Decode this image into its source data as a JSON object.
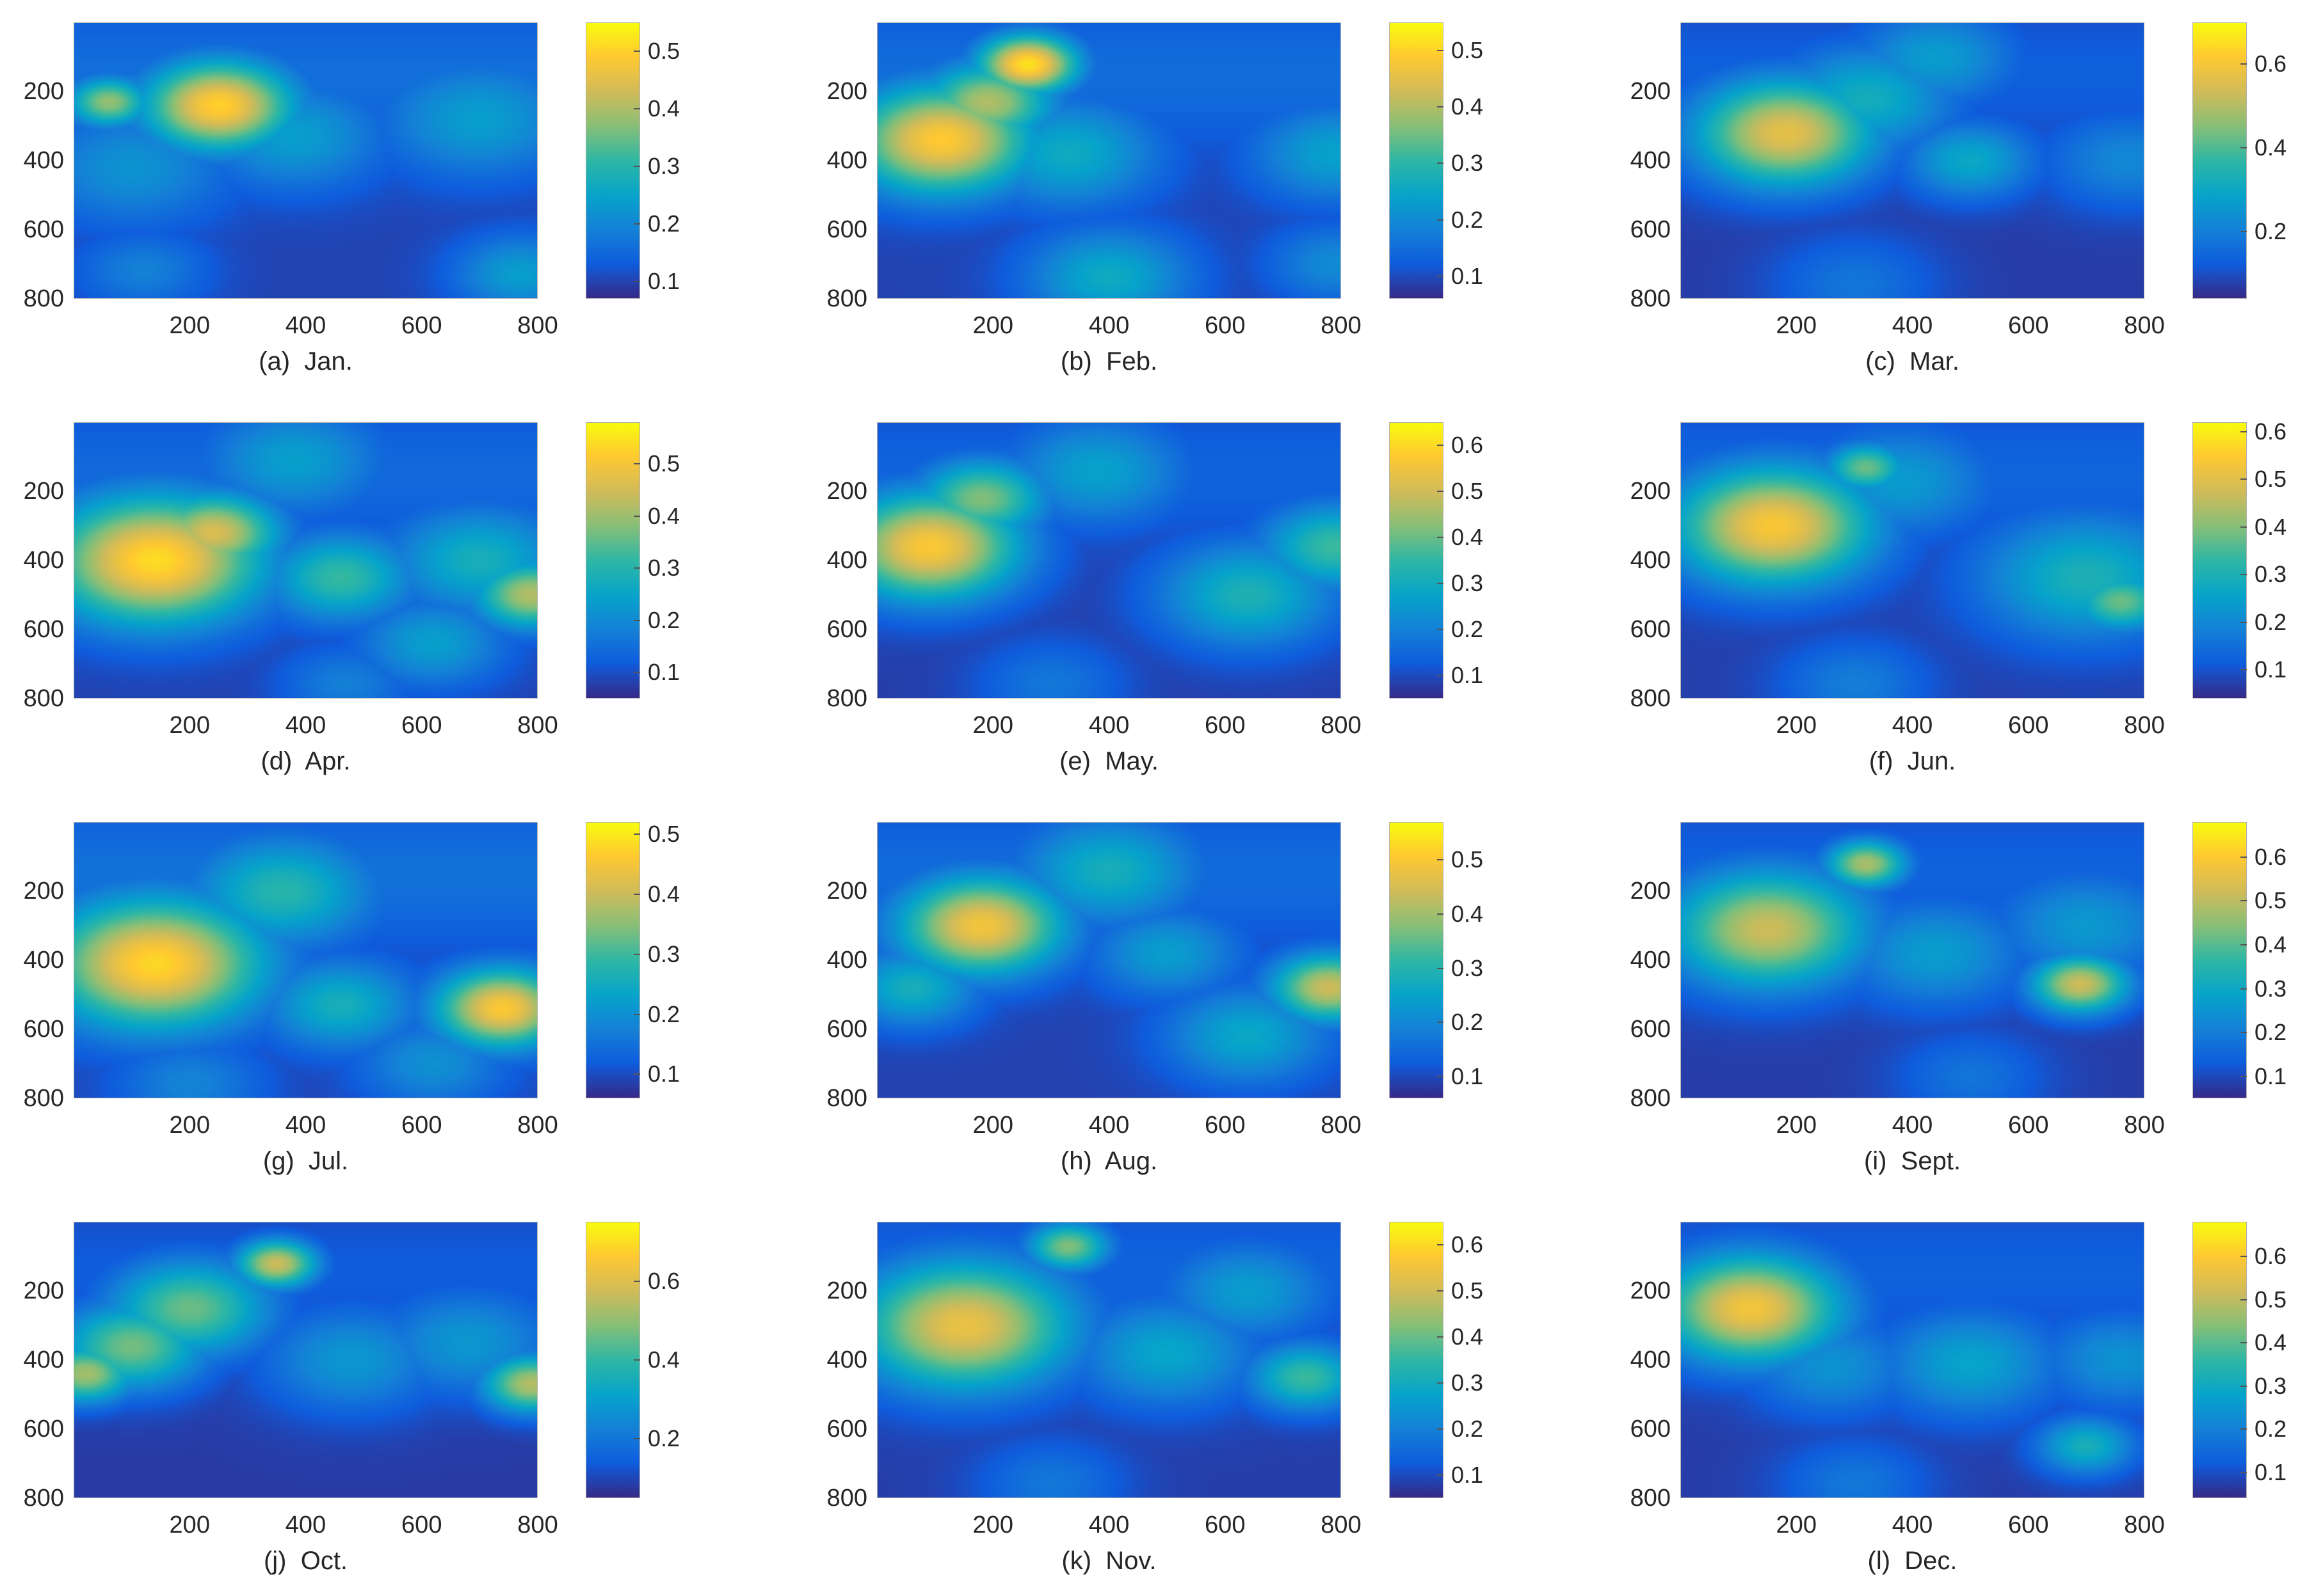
{
  "colors": {
    "colormap_parula": [
      "#352a87",
      "#0f5cdd",
      "#1481d6",
      "#06a4ca",
      "#2eb7a4",
      "#87bf77",
      "#d1bb59",
      "#fec832",
      "#f9fb0e"
    ]
  },
  "chart_data": [
    {
      "type": "heatmap",
      "caption": "(a)  Jan.",
      "xlim": [
        0,
        800
      ],
      "ylim": [
        800,
        0
      ],
      "x_ticks": [
        "200",
        "400",
        "600",
        "800"
      ],
      "y_ticks": [
        "200",
        "400",
        "600",
        "800"
      ],
      "colorbar": {
        "min": 0.07,
        "max": 0.55,
        "ticks": [
          "0.1",
          "0.2",
          "0.3",
          "0.4",
          "0.5"
        ]
      },
      "hotspots": [
        {
          "x": 250,
          "y": 240,
          "value": 0.48,
          "spread": 90
        },
        {
          "x": 60,
          "y": 230,
          "value": 0.36,
          "spread": 50
        },
        {
          "x": 380,
          "y": 330,
          "value": 0.22,
          "spread": 110
        },
        {
          "x": 700,
          "y": 280,
          "value": 0.22,
          "spread": 120
        },
        {
          "x": 100,
          "y": 420,
          "value": 0.2,
          "spread": 120
        },
        {
          "x": 770,
          "y": 730,
          "value": 0.22,
          "spread": 80
        },
        {
          "x": 120,
          "y": 720,
          "value": 0.17,
          "spread": 80
        }
      ]
    },
    {
      "type": "heatmap",
      "caption": "(b)  Feb.",
      "xlim": [
        0,
        800
      ],
      "ylim": [
        800,
        0
      ],
      "x_ticks": [
        "200",
        "400",
        "600",
        "800"
      ],
      "y_ticks": [
        "200",
        "400",
        "600",
        "800"
      ],
      "colorbar": {
        "min": 0.06,
        "max": 0.55,
        "ticks": [
          "0.1",
          "0.2",
          "0.3",
          "0.4",
          "0.5"
        ]
      },
      "hotspots": [
        {
          "x": 110,
          "y": 340,
          "value": 0.47,
          "spread": 110
        },
        {
          "x": 260,
          "y": 120,
          "value": 0.5,
          "spread": 60
        },
        {
          "x": 190,
          "y": 230,
          "value": 0.38,
          "spread": 80
        },
        {
          "x": 330,
          "y": 380,
          "value": 0.24,
          "spread": 110
        },
        {
          "x": 400,
          "y": 740,
          "value": 0.24,
          "spread": 100
        },
        {
          "x": 790,
          "y": 380,
          "value": 0.22,
          "spread": 100
        },
        {
          "x": 790,
          "y": 700,
          "value": 0.18,
          "spread": 80
        }
      ]
    },
    {
      "type": "heatmap",
      "caption": "(c)  Mar.",
      "xlim": [
        0,
        800
      ],
      "ylim": [
        800,
        0
      ],
      "x_ticks": [
        "200",
        "400",
        "600",
        "800"
      ],
      "y_ticks": [
        "200",
        "400",
        "600",
        "800"
      ],
      "colorbar": {
        "min": 0.04,
        "max": 0.7,
        "ticks": [
          "0.2",
          "0.4",
          "0.6"
        ]
      },
      "hotspots": [
        {
          "x": 180,
          "y": 320,
          "value": 0.55,
          "spread": 110
        },
        {
          "x": 320,
          "y": 220,
          "value": 0.3,
          "spread": 110
        },
        {
          "x": 500,
          "y": 400,
          "value": 0.28,
          "spread": 80
        },
        {
          "x": 440,
          "y": 100,
          "value": 0.25,
          "spread": 100
        },
        {
          "x": 770,
          "y": 400,
          "value": 0.2,
          "spread": 100
        },
        {
          "x": 300,
          "y": 760,
          "value": 0.16,
          "spread": 100
        }
      ]
    },
    {
      "type": "heatmap",
      "caption": "(d)  Apr.",
      "xlim": [
        0,
        800
      ],
      "ylim": [
        800,
        0
      ],
      "x_ticks": [
        "200",
        "400",
        "600",
        "800"
      ],
      "y_ticks": [
        "200",
        "400",
        "600",
        "800"
      ],
      "colorbar": {
        "min": 0.05,
        "max": 0.58,
        "ticks": [
          "0.1",
          "0.2",
          "0.3",
          "0.4",
          "0.5"
        ]
      },
      "hotspots": [
        {
          "x": 140,
          "y": 400,
          "value": 0.52,
          "spread": 130
        },
        {
          "x": 240,
          "y": 320,
          "value": 0.44,
          "spread": 80
        },
        {
          "x": 460,
          "y": 450,
          "value": 0.3,
          "spread": 90
        },
        {
          "x": 790,
          "y": 500,
          "value": 0.4,
          "spread": 70
        },
        {
          "x": 700,
          "y": 400,
          "value": 0.26,
          "spread": 110
        },
        {
          "x": 620,
          "y": 640,
          "value": 0.22,
          "spread": 90
        },
        {
          "x": 380,
          "y": 110,
          "value": 0.22,
          "spread": 110
        },
        {
          "x": 470,
          "y": 760,
          "value": 0.16,
          "spread": 80
        }
      ]
    },
    {
      "type": "heatmap",
      "caption": "(e)  May.",
      "xlim": [
        0,
        800
      ],
      "ylim": [
        800,
        0
      ],
      "x_ticks": [
        "200",
        "400",
        "600",
        "800"
      ],
      "y_ticks": [
        "200",
        "400",
        "600",
        "800"
      ],
      "colorbar": {
        "min": 0.05,
        "max": 0.65,
        "ticks": [
          "0.1",
          "0.2",
          "0.3",
          "0.4",
          "0.5",
          "0.6"
        ]
      },
      "hotspots": [
        {
          "x": 90,
          "y": 360,
          "value": 0.55,
          "spread": 110
        },
        {
          "x": 180,
          "y": 220,
          "value": 0.4,
          "spread": 80
        },
        {
          "x": 380,
          "y": 140,
          "value": 0.25,
          "spread": 110
        },
        {
          "x": 640,
          "y": 500,
          "value": 0.3,
          "spread": 110
        },
        {
          "x": 790,
          "y": 360,
          "value": 0.34,
          "spread": 90
        },
        {
          "x": 300,
          "y": 760,
          "value": 0.16,
          "spread": 90
        }
      ]
    },
    {
      "type": "heatmap",
      "caption": "(f)  Jun.",
      "xlim": [
        0,
        800
      ],
      "ylim": [
        800,
        0
      ],
      "x_ticks": [
        "200",
        "400",
        "600",
        "800"
      ],
      "y_ticks": [
        "200",
        "400",
        "600",
        "800"
      ],
      "colorbar": {
        "min": 0.04,
        "max": 0.62,
        "ticks": [
          "0.1",
          "0.2",
          "0.3",
          "0.4",
          "0.5",
          "0.6"
        ]
      },
      "hotspots": [
        {
          "x": 160,
          "y": 300,
          "value": 0.52,
          "spread": 120
        },
        {
          "x": 320,
          "y": 130,
          "value": 0.36,
          "spread": 50
        },
        {
          "x": 700,
          "y": 450,
          "value": 0.28,
          "spread": 130
        },
        {
          "x": 760,
          "y": 520,
          "value": 0.36,
          "spread": 60
        },
        {
          "x": 380,
          "y": 170,
          "value": 0.22,
          "spread": 110
        },
        {
          "x": 300,
          "y": 760,
          "value": 0.16,
          "spread": 90
        }
      ]
    },
    {
      "type": "heatmap",
      "caption": "(g)  Jul.",
      "xlim": [
        0,
        800
      ],
      "ylim": [
        800,
        0
      ],
      "x_ticks": [
        "200",
        "400",
        "600",
        "800"
      ],
      "y_ticks": [
        "200",
        "400",
        "600",
        "800"
      ],
      "colorbar": {
        "min": 0.06,
        "max": 0.52,
        "ticks": [
          "0.1",
          "0.2",
          "0.3",
          "0.4",
          "0.5"
        ]
      },
      "hotspots": [
        {
          "x": 140,
          "y": 410,
          "value": 0.46,
          "spread": 130
        },
        {
          "x": 740,
          "y": 540,
          "value": 0.44,
          "spread": 80
        },
        {
          "x": 360,
          "y": 200,
          "value": 0.26,
          "spread": 110
        },
        {
          "x": 460,
          "y": 530,
          "value": 0.24,
          "spread": 90
        },
        {
          "x": 620,
          "y": 700,
          "value": 0.18,
          "spread": 90
        },
        {
          "x": 200,
          "y": 760,
          "value": 0.16,
          "spread": 90
        }
      ]
    },
    {
      "type": "heatmap",
      "caption": "(h)  Aug.",
      "xlim": [
        0,
        800
      ],
      "ylim": [
        800,
        0
      ],
      "x_ticks": [
        "200",
        "400",
        "600",
        "800"
      ],
      "y_ticks": [
        "200",
        "400",
        "600",
        "800"
      ],
      "colorbar": {
        "min": 0.06,
        "max": 0.57,
        "ticks": [
          "0.1",
          "0.2",
          "0.3",
          "0.4",
          "0.5"
        ]
      },
      "hotspots": [
        {
          "x": 180,
          "y": 300,
          "value": 0.47,
          "spread": 100
        },
        {
          "x": 780,
          "y": 480,
          "value": 0.42,
          "spread": 70
        },
        {
          "x": 400,
          "y": 140,
          "value": 0.26,
          "spread": 110
        },
        {
          "x": 640,
          "y": 620,
          "value": 0.24,
          "spread": 100
        },
        {
          "x": 500,
          "y": 380,
          "value": 0.22,
          "spread": 90
        },
        {
          "x": 60,
          "y": 480,
          "value": 0.26,
          "spread": 80
        }
      ]
    },
    {
      "type": "heatmap",
      "caption": "(i)  Sept.",
      "xlim": [
        0,
        800
      ],
      "ylim": [
        800,
        0
      ],
      "x_ticks": [
        "200",
        "400",
        "600",
        "800"
      ],
      "y_ticks": [
        "200",
        "400",
        "600",
        "800"
      ],
      "colorbar": {
        "min": 0.05,
        "max": 0.68,
        "ticks": [
          "0.1",
          "0.2",
          "0.3",
          "0.4",
          "0.5",
          "0.6"
        ]
      },
      "hotspots": [
        {
          "x": 150,
          "y": 310,
          "value": 0.5,
          "spread": 120
        },
        {
          "x": 320,
          "y": 120,
          "value": 0.46,
          "spread": 50
        },
        {
          "x": 690,
          "y": 470,
          "value": 0.5,
          "spread": 60
        },
        {
          "x": 440,
          "y": 380,
          "value": 0.25,
          "spread": 110
        },
        {
          "x": 700,
          "y": 300,
          "value": 0.24,
          "spread": 110
        },
        {
          "x": 500,
          "y": 740,
          "value": 0.16,
          "spread": 90
        }
      ]
    },
    {
      "type": "heatmap",
      "caption": "(j)  Oct.",
      "xlim": [
        0,
        800
      ],
      "ylim": [
        800,
        0
      ],
      "x_ticks": [
        "200",
        "400",
        "600",
        "800"
      ],
      "y_ticks": [
        "200",
        "400",
        "600",
        "800"
      ],
      "colorbar": {
        "min": 0.05,
        "max": 0.75,
        "ticks": [
          "0.2",
          "0.4",
          "0.6"
        ]
      },
      "hotspots": [
        {
          "x": 350,
          "y": 120,
          "value": 0.55,
          "spread": 50
        },
        {
          "x": 100,
          "y": 360,
          "value": 0.45,
          "spread": 90
        },
        {
          "x": 200,
          "y": 250,
          "value": 0.44,
          "spread": 100
        },
        {
          "x": 20,
          "y": 440,
          "value": 0.5,
          "spread": 60
        },
        {
          "x": 790,
          "y": 470,
          "value": 0.52,
          "spread": 60
        },
        {
          "x": 480,
          "y": 400,
          "value": 0.26,
          "spread": 110
        },
        {
          "x": 680,
          "y": 350,
          "value": 0.26,
          "spread": 110
        }
      ]
    },
    {
      "type": "heatmap",
      "caption": "(k)  Nov.",
      "xlim": [
        0,
        800
      ],
      "ylim": [
        800,
        0
      ],
      "x_ticks": [
        "200",
        "400",
        "600",
        "800"
      ],
      "y_ticks": [
        "200",
        "400",
        "600",
        "800"
      ],
      "colorbar": {
        "min": 0.05,
        "max": 0.65,
        "ticks": [
          "0.1",
          "0.2",
          "0.3",
          "0.4",
          "0.5",
          "0.6"
        ]
      },
      "hotspots": [
        {
          "x": 150,
          "y": 300,
          "value": 0.52,
          "spread": 130
        },
        {
          "x": 330,
          "y": 70,
          "value": 0.4,
          "spread": 50
        },
        {
          "x": 500,
          "y": 380,
          "value": 0.26,
          "spread": 110
        },
        {
          "x": 740,
          "y": 450,
          "value": 0.34,
          "spread": 70
        },
        {
          "x": 640,
          "y": 200,
          "value": 0.24,
          "spread": 100
        },
        {
          "x": 300,
          "y": 760,
          "value": 0.16,
          "spread": 90
        }
      ]
    },
    {
      "type": "heatmap",
      "caption": "(l)  Dec.",
      "xlim": [
        0,
        800
      ],
      "ylim": [
        800,
        0
      ],
      "x_ticks": [
        "200",
        "400",
        "600",
        "800"
      ],
      "y_ticks": [
        "200",
        "400",
        "600",
        "800"
      ],
      "colorbar": {
        "min": 0.04,
        "max": 0.68,
        "ticks": [
          "0.1",
          "0.2",
          "0.3",
          "0.4",
          "0.5",
          "0.6"
        ]
      },
      "hotspots": [
        {
          "x": 120,
          "y": 250,
          "value": 0.56,
          "spread": 110
        },
        {
          "x": 500,
          "y": 410,
          "value": 0.26,
          "spread": 110
        },
        {
          "x": 260,
          "y": 420,
          "value": 0.22,
          "spread": 100
        },
        {
          "x": 700,
          "y": 650,
          "value": 0.3,
          "spread": 60
        },
        {
          "x": 760,
          "y": 400,
          "value": 0.22,
          "spread": 100
        },
        {
          "x": 300,
          "y": 760,
          "value": 0.16,
          "spread": 90
        }
      ]
    }
  ]
}
